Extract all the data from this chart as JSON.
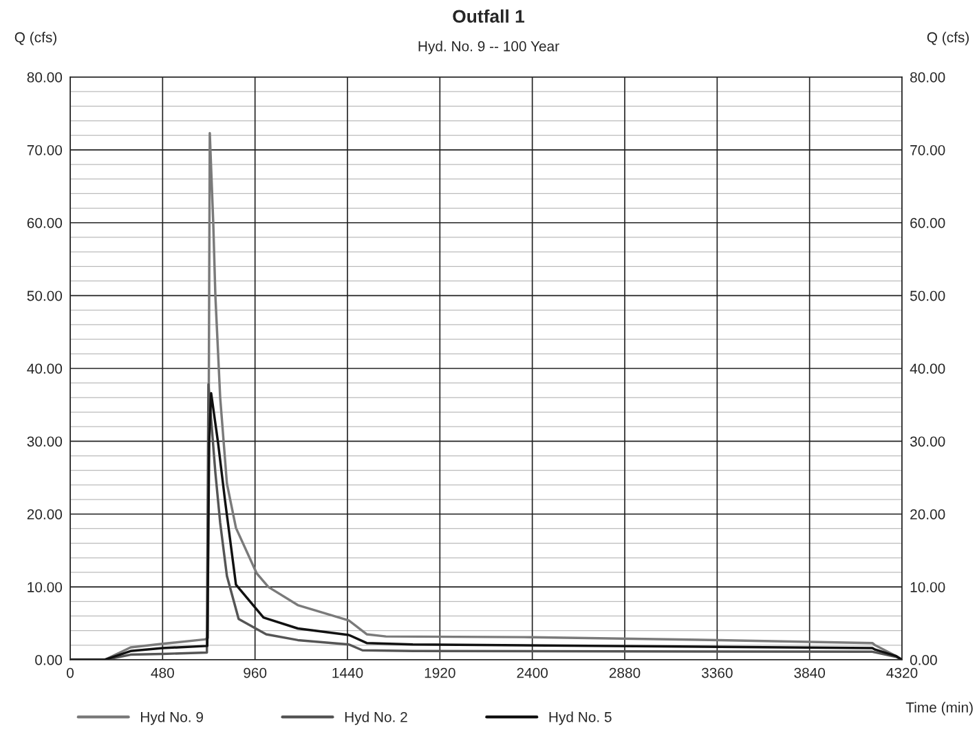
{
  "chart_data": {
    "type": "line",
    "title": "Outfall 1",
    "subtitle": "Hyd. No. 9 -- 100 Year",
    "xlabel": "Time (min)",
    "ylabel": "Q (cfs)",
    "y2label": "Q (cfs)",
    "xlim": [
      0,
      4320
    ],
    "xticks": [
      0,
      480,
      960,
      1440,
      1920,
      2400,
      2880,
      3360,
      3840,
      4320
    ],
    "ylim": [
      0,
      80
    ],
    "yticks": [
      {
        "value": 0,
        "label": "0.00"
      },
      {
        "value": 2,
        "label": null
      },
      {
        "value": 4,
        "label": null
      },
      {
        "value": 6,
        "label": null
      },
      {
        "value": 8,
        "label": null
      },
      {
        "value": 10,
        "label": "10.00"
      },
      {
        "value": 12,
        "label": null
      },
      {
        "value": 14,
        "label": null
      },
      {
        "value": 16,
        "label": null
      },
      {
        "value": 18,
        "label": null
      },
      {
        "value": 20,
        "label": "20.00"
      },
      {
        "value": 22,
        "label": null
      },
      {
        "value": 24,
        "label": null
      },
      {
        "value": 26,
        "label": null
      },
      {
        "value": 28,
        "label": null
      },
      {
        "value": 30,
        "label": "30.00"
      },
      {
        "value": 32,
        "label": null
      },
      {
        "value": 34,
        "label": null
      },
      {
        "value": 36,
        "label": null
      },
      {
        "value": 38,
        "label": null
      },
      {
        "value": 40,
        "label": "40.00"
      },
      {
        "value": 42,
        "label": null
      },
      {
        "value": 44,
        "label": null
      },
      {
        "value": 46,
        "label": null
      },
      {
        "value": 48,
        "label": null
      },
      {
        "value": 50,
        "label": "50.00"
      },
      {
        "value": 52,
        "label": null
      },
      {
        "value": 54,
        "label": null
      },
      {
        "value": 56,
        "label": null
      },
      {
        "value": 58,
        "label": null
      },
      {
        "value": 60,
        "label": "60.00"
      },
      {
        "value": 62,
        "label": null
      },
      {
        "value": 64,
        "label": null
      },
      {
        "value": 66,
        "label": null
      },
      {
        "value": 68,
        "label": null
      },
      {
        "value": 70,
        "label": "70.00"
      },
      {
        "value": 72,
        "label": null
      },
      {
        "value": 74,
        "label": null
      },
      {
        "value": 76,
        "label": null
      },
      {
        "value": 78,
        "label": null
      },
      {
        "value": 80,
        "label": "80.00"
      }
    ],
    "y2lim": [
      0,
      80
    ],
    "y2ticks": [
      {
        "value": 0,
        "label": "0.00"
      },
      {
        "value": 10,
        "label": "10.00"
      },
      {
        "value": 20,
        "label": "20.00"
      },
      {
        "value": 30,
        "label": "30.00"
      },
      {
        "value": 40,
        "label": "40.00"
      },
      {
        "value": 50,
        "label": "50.00"
      },
      {
        "value": 60,
        "label": "60.00"
      },
      {
        "value": 70,
        "label": "70.00"
      },
      {
        "value": 80,
        "label": "80.00"
      }
    ],
    "grid": true,
    "legend": "bottom",
    "series": [
      {
        "name": "Hyd No. 9",
        "color": "#7a7a7a",
        "x": [
          0,
          180,
          314,
          480,
          700,
          715,
          725,
          743,
          754,
          779,
          814,
          861,
          968,
          1029,
          1182,
          1447,
          1540,
          1640,
          2400,
          3369,
          4166,
          4180,
          4290,
          4320
        ],
        "values": [
          0,
          0,
          1.7,
          2.2,
          2.8,
          3.0,
          72.3,
          60,
          50,
          36,
          24.2,
          18.1,
          11.9,
          10.0,
          7.5,
          5.4,
          3.5,
          3.2,
          3.1,
          2.7,
          2.3,
          2.0,
          0.5,
          0
        ]
      },
      {
        "name": "Hyd No. 2",
        "color": "#555555",
        "x": [
          0,
          180,
          314,
          480,
          710,
          718,
          732,
          754,
          779,
          814,
          875,
          1018,
          1182,
          1447,
          1518,
          1779,
          4166,
          4290,
          4320
        ],
        "values": [
          0,
          0,
          0.7,
          0.8,
          1.0,
          37.8,
          33,
          25.7,
          18.8,
          11.5,
          5.6,
          3.5,
          2.7,
          2.1,
          1.3,
          1.2,
          1.1,
          0.4,
          0
        ]
      },
      {
        "name": "Hyd No. 5",
        "color": "#111111",
        "x": [
          0,
          180,
          314,
          480,
          712,
          722,
          732,
          768,
          804,
          861,
          1004,
          1182,
          1447,
          1540,
          1779,
          4166,
          4180,
          4290,
          4320
        ],
        "values": [
          0,
          0,
          1.2,
          1.6,
          1.9,
          30,
          36.6,
          29.8,
          21.9,
          10.3,
          5.8,
          4.3,
          3.4,
          2.3,
          2.1,
          1.6,
          1.4,
          0.5,
          0
        ]
      }
    ]
  }
}
